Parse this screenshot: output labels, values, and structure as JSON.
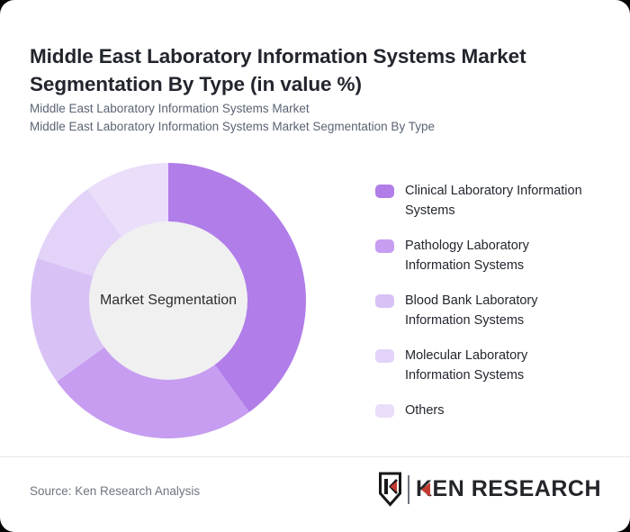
{
  "page": {
    "background_color": "#060606",
    "card_background": "#ffffff"
  },
  "header": {
    "title": "Middle East Laboratory Information Systems Market Segmentation By Type (in value %)",
    "subtitle_line1": "Middle East Laboratory Information Systems Market",
    "subtitle_line2": "Middle East Laboratory Information Systems Market Segmentation By Type"
  },
  "chart_data": {
    "type": "pie",
    "donut": true,
    "title": "Middle East Laboratory Information Systems Market Segmentation By Type (in value %)",
    "unit": "value %",
    "center_label": "Market Segmentation",
    "center_fill": "#f0f0f1",
    "start_angle_deg": 0,
    "direction": "clockwise",
    "legend_position": "right",
    "series": [
      {
        "name": "Clinical Laboratory Information Systems",
        "label": "Clinical Laboratory Information\nSystems",
        "value": 40,
        "color": "#b17de9"
      },
      {
        "name": "Pathology Laboratory Information Systems",
        "label": "Pathology Laboratory\nInformation Systems",
        "value": 25,
        "color": "#c69df0"
      },
      {
        "name": "Blood Bank Laboratory Information Systems",
        "label": "Blood Bank Laboratory\nInformation Systems",
        "value": 15,
        "color": "#d8c2f5"
      },
      {
        "name": "Molecular Laboratory Information Systems",
        "label": "Molecular Laboratory\nInformation Systems",
        "value": 10,
        "color": "#e3d3f8"
      },
      {
        "name": "Others",
        "label": "Others",
        "value": 10,
        "color": "#eadefa"
      }
    ]
  },
  "footer": {
    "source": "Source: Ken Research Analysis",
    "logo_wordmark": "KEN RESEARCH",
    "logo_accent_color": "#c23b30"
  }
}
